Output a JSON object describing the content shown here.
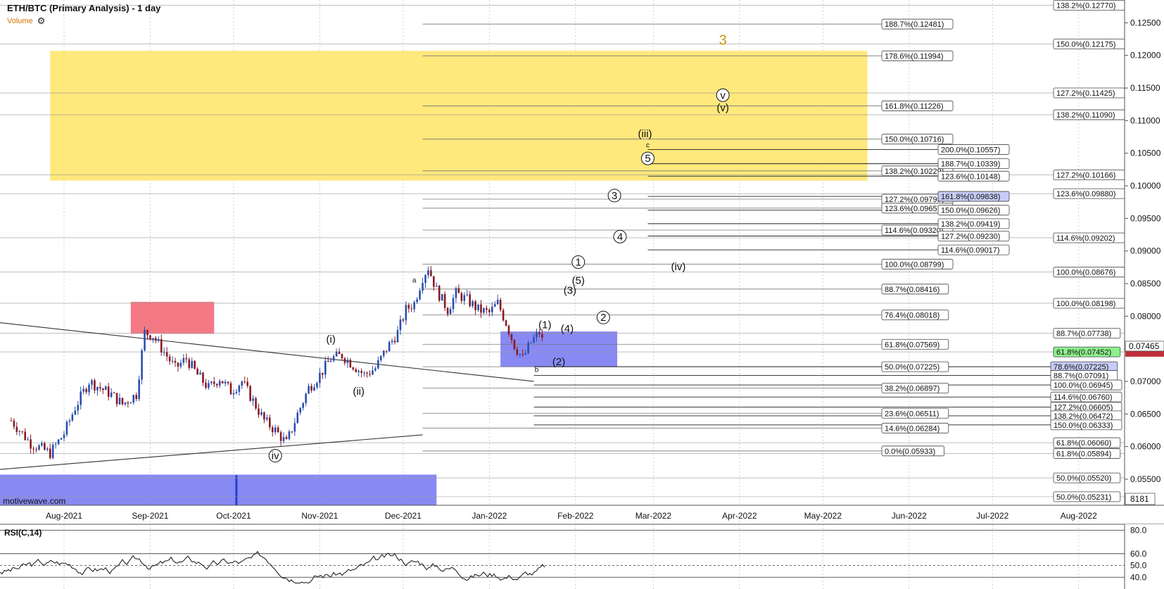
{
  "header": {
    "title": "ETH/BTC (Primary Analysis) - 1 day",
    "volume_label": "Volume",
    "settings_icon": "gear-icon"
  },
  "brand": "motivewave.com",
  "rsi": {
    "title": "RSI(C,14)",
    "ticks": [
      "80.0",
      "60.0",
      "50.0",
      "40.0"
    ],
    "levels": [
      80,
      60,
      50,
      40
    ]
  },
  "x_axis": {
    "labels": [
      "Aug-2021",
      "Sep-2021",
      "Oct-2021",
      "Nov-2021",
      "Dec-2021",
      "Jan-2022",
      "Feb-2022",
      "Mar-2022",
      "Apr-2022",
      "May-2022",
      "Jun-2022",
      "Jul-2022",
      "Aug-2022"
    ]
  },
  "colors": {
    "up": "#2a4fb0",
    "down": "#8a1a22",
    "zone_yellow": "#ffe66e",
    "zone_red": "#f46a78",
    "zone_blue": "#7c7cf2",
    "price_green": "#8ef08e",
    "price_red": "#c0303a"
  },
  "chart_data": {
    "type": "candlestick",
    "title": "ETH/BTC (Primary Analysis) - 1 day",
    "ylim": [
      0.051,
      0.1285
    ],
    "y_ticks": [
      "0.12500",
      "0.12000",
      "0.11500",
      "0.11000",
      "0.10500",
      "0.10000",
      "0.09500",
      "0.09000",
      "0.08500",
      "0.08000",
      "0.07500",
      "0.07000",
      "0.06500",
      "0.06000",
      "0.05500"
    ],
    "x": [
      "Aug-2021",
      "Sep-2021",
      "Oct-2021",
      "Nov-2021",
      "Dec-2021",
      "Jan-2022",
      "Feb-2022",
      "Mar-2022",
      "Apr-2022",
      "May-2022",
      "Jun-2022",
      "Jul-2022",
      "Aug-2022"
    ],
    "last_price": "0.07465",
    "volume_value": "8181",
    "close_path": [
      {
        "d": "2021-07-13",
        "v": 0.064
      },
      {
        "d": "2021-07-20",
        "v": 0.0605
      },
      {
        "d": "2021-07-27",
        "v": 0.059
      },
      {
        "d": "2021-08-01",
        "v": 0.062
      },
      {
        "d": "2021-08-05",
        "v": 0.066
      },
      {
        "d": "2021-08-10",
        "v": 0.07
      },
      {
        "d": "2021-08-14",
        "v": 0.069
      },
      {
        "d": "2021-08-18",
        "v": 0.068
      },
      {
        "d": "2021-08-22",
        "v": 0.0665
      },
      {
        "d": "2021-08-27",
        "v": 0.068
      },
      {
        "d": "2021-08-30",
        "v": 0.0775
      },
      {
        "d": "2021-09-02",
        "v": 0.077
      },
      {
        "d": "2021-09-06",
        "v": 0.0745
      },
      {
        "d": "2021-09-10",
        "v": 0.072
      },
      {
        "d": "2021-09-14",
        "v": 0.0735
      },
      {
        "d": "2021-09-18",
        "v": 0.071
      },
      {
        "d": "2021-09-22",
        "v": 0.069
      },
      {
        "d": "2021-09-26",
        "v": 0.0705
      },
      {
        "d": "2021-09-30",
        "v": 0.0685
      },
      {
        "d": "2021-10-04",
        "v": 0.07
      },
      {
        "d": "2021-10-08",
        "v": 0.067
      },
      {
        "d": "2021-10-12",
        "v": 0.064
      },
      {
        "d": "2021-10-16",
        "v": 0.0625
      },
      {
        "d": "2021-10-20",
        "v": 0.0605
      },
      {
        "d": "2021-10-24",
        "v": 0.065
      },
      {
        "d": "2021-10-28",
        "v": 0.069
      },
      {
        "d": "2021-11-01",
        "v": 0.071
      },
      {
        "d": "2021-11-05",
        "v": 0.0735
      },
      {
        "d": "2021-11-09",
        "v": 0.074
      },
      {
        "d": "2021-11-13",
        "v": 0.0725
      },
      {
        "d": "2021-11-17",
        "v": 0.071
      },
      {
        "d": "2021-11-21",
        "v": 0.072
      },
      {
        "d": "2021-11-25",
        "v": 0.075
      },
      {
        "d": "2021-11-29",
        "v": 0.0775
      },
      {
        "d": "2021-12-02",
        "v": 0.081
      },
      {
        "d": "2021-12-05",
        "v": 0.082
      },
      {
        "d": "2021-12-08",
        "v": 0.086
      },
      {
        "d": "2021-12-10",
        "v": 0.0875
      },
      {
        "d": "2021-12-13",
        "v": 0.084
      },
      {
        "d": "2021-12-17",
        "v": 0.081
      },
      {
        "d": "2021-12-20",
        "v": 0.0835
      },
      {
        "d": "2021-12-24",
        "v": 0.0825
      },
      {
        "d": "2021-12-28",
        "v": 0.081
      },
      {
        "d": "2022-01-01",
        "v": 0.0805
      },
      {
        "d": "2022-01-04",
        "v": 0.082
      },
      {
        "d": "2022-01-07",
        "v": 0.079
      },
      {
        "d": "2022-01-10",
        "v": 0.0755
      },
      {
        "d": "2022-01-13",
        "v": 0.0735
      },
      {
        "d": "2022-01-16",
        "v": 0.076
      },
      {
        "d": "2022-01-19",
        "v": 0.0775
      },
      {
        "d": "2022-01-21",
        "v": 0.075
      }
    ],
    "fib_middle": [
      {
        "label": "188.7%(0.12481)",
        "v": 0.12481
      },
      {
        "label": "178.6%(0.11994)",
        "v": 0.11994
      },
      {
        "label": "161.8%(0.11226)",
        "v": 0.11226
      },
      {
        "label": "150.0%(0.10716)",
        "v": 0.10716
      },
      {
        "label": "138.2%(0.10229)",
        "v": 0.10229
      },
      {
        "label": "127.2%(0.09795)",
        "v": 0.09795
      },
      {
        "label": "123.6%(0.09657)",
        "v": 0.09657
      },
      {
        "label": "114.6%(0.09320)",
        "v": 0.0932
      },
      {
        "label": "100.0%(0.08799)",
        "v": 0.08799
      },
      {
        "label": "88.7%(0.08416)",
        "v": 0.08416
      },
      {
        "label": "76.4%(0.08018)",
        "v": 0.08018
      },
      {
        "label": "61.8%(0.07569)",
        "v": 0.07569
      },
      {
        "label": "50.0%(0.07225)",
        "v": 0.07225
      },
      {
        "label": "38.2%(0.06897)",
        "v": 0.06897
      },
      {
        "label": "23.6%(0.06511)",
        "v": 0.06511
      },
      {
        "label": "14.6%(0.06284)",
        "v": 0.06284
      },
      {
        "label": "0.0%(0.05933)",
        "v": 0.05933
      }
    ],
    "fib_cluster": [
      {
        "label": "200.0%(0.10557)",
        "v": 0.10557
      },
      {
        "label": "188.7%(0.10339)",
        "v": 0.10339
      },
      {
        "label": "123.6%(0.10148)",
        "v": 0.10148
      },
      {
        "label": "161.8%(0.09838)",
        "v": 0.09838,
        "highlight": true
      },
      {
        "label": "150.0%(0.09626)",
        "v": 0.09626
      },
      {
        "label": "138.2%(0.09419)",
        "v": 0.09419
      },
      {
        "label": "127.2%(0.09230)",
        "v": 0.0923
      },
      {
        "label": "114.6%(0.09017)",
        "v": 0.09017
      }
    ],
    "fib_lower": [
      {
        "label": "78.6%(0.07225)",
        "v": 0.07225,
        "highlight": true
      },
      {
        "label": "88.7%(0.07091)",
        "v": 0.07091
      },
      {
        "label": "100.0%(0.06945)",
        "v": 0.06945
      },
      {
        "label": "114.6%(0.06760)",
        "v": 0.0676
      },
      {
        "label": "127.2%(0.06605)",
        "v": 0.06605
      },
      {
        "label": "138.2%(0.06472)",
        "v": 0.06472
      },
      {
        "label": "150.0%(0.06333)",
        "v": 0.06333
      }
    ],
    "fib_right": [
      {
        "label": "138.2%(0.12770)",
        "v": 0.1277
      },
      {
        "label": "150.0%(0.12175)",
        "v": 0.12175
      },
      {
        "label": "127.2%(0.11425)",
        "v": 0.11425
      },
      {
        "label": "138.2%(0.11090)",
        "v": 0.1109
      },
      {
        "label": "127.2%(0.10166)",
        "v": 0.10166
      },
      {
        "label": "123.6%(0.09880)",
        "v": 0.0988
      },
      {
        "label": "114.6%(0.09202)",
        "v": 0.09202
      },
      {
        "label": "100.0%(0.08676)",
        "v": 0.08676
      },
      {
        "label": "100.0%(0.08198)",
        "v": 0.08198
      },
      {
        "label": "88.7%(0.07738)",
        "v": 0.07738
      },
      {
        "label": "61.8%(0.07452)",
        "v": 0.07452,
        "green": true
      },
      {
        "label": "61.8%(0.06060)",
        "v": 0.0606
      },
      {
        "label": "61.8%(0.05894)",
        "v": 0.05894
      },
      {
        "label": "50.0%(0.05520)",
        "v": 0.0552
      },
      {
        "label": "50.0%(0.05231)",
        "v": 0.05231
      }
    ],
    "wave_labels": [
      {
        "text": "3",
        "d": "2022-03-26",
        "v": 0.1222,
        "style": "gold"
      },
      {
        "text": "v",
        "d": "2022-03-26",
        "v": 0.1139,
        "style": "circle"
      },
      {
        "text": "(v)",
        "d": "2022-03-26",
        "v": 0.112,
        "style": "plain"
      },
      {
        "text": "(iii)",
        "d": "2022-02-26",
        "v": 0.108,
        "style": "plain"
      },
      {
        "text": "c",
        "d": "2022-02-27",
        "v": 0.1062,
        "style": "small"
      },
      {
        "text": "5",
        "d": "2022-02-27",
        "v": 0.1042,
        "style": "circle"
      },
      {
        "text": "3",
        "d": "2022-02-15",
        "v": 0.0985,
        "style": "circle"
      },
      {
        "text": "4",
        "d": "2022-02-17",
        "v": 0.0922,
        "style": "circle"
      },
      {
        "text": "1",
        "d": "2022-02-02",
        "v": 0.0883,
        "style": "circle"
      },
      {
        "text": "(iv)",
        "d": "2022-03-10",
        "v": 0.0876,
        "style": "plain"
      },
      {
        "text": "(5)",
        "d": "2022-02-02",
        "v": 0.0855,
        "style": "plain"
      },
      {
        "text": "(3)",
        "d": "2022-01-30",
        "v": 0.084,
        "style": "plain"
      },
      {
        "text": "2",
        "d": "2022-02-11",
        "v": 0.0798,
        "style": "circle"
      },
      {
        "text": "(1)",
        "d": "2022-01-21",
        "v": 0.0787,
        "style": "plain"
      },
      {
        "text": "(4)",
        "d": "2022-01-29",
        "v": 0.0781,
        "style": "plain"
      },
      {
        "text": "(2)",
        "d": "2022-01-26",
        "v": 0.073,
        "style": "plain"
      },
      {
        "text": "b",
        "d": "2022-01-18",
        "v": 0.0718,
        "style": "small"
      },
      {
        "text": "a",
        "d": "2021-12-05",
        "v": 0.0855,
        "style": "small"
      },
      {
        "text": "(i)",
        "d": "2021-11-05",
        "v": 0.0765,
        "style": "plain"
      },
      {
        "text": "(ii)",
        "d": "2021-11-15",
        "v": 0.0685,
        "style": "plain"
      },
      {
        "text": "iv",
        "d": "2021-10-16",
        "v": 0.0586,
        "style": "circle"
      }
    ]
  }
}
